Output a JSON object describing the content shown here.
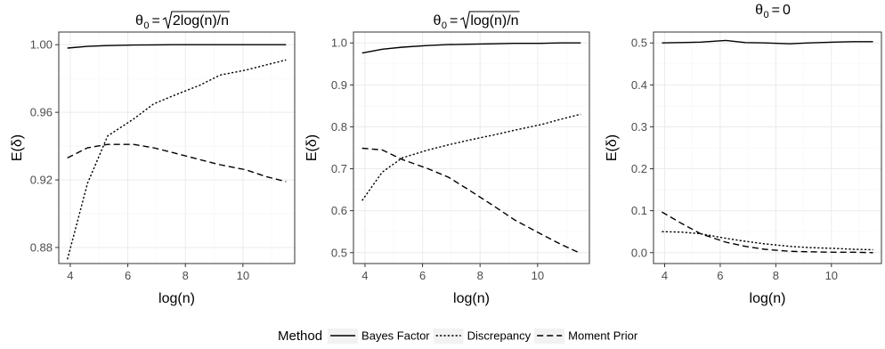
{
  "chart_data": [
    {
      "type": "line",
      "title": "θ0 = √(2log(n)/n)",
      "title_parts": {
        "symbol": "θ",
        "subscript": "0",
        "equals": "=",
        "radicand": "2log(n)/n"
      },
      "xlabel": "log(n)",
      "ylabel": "E(δ)",
      "xlim": [
        3.6,
        11.8
      ],
      "ylim": [
        0.8705,
        1.0075
      ],
      "x_ticks": [
        4,
        6,
        8,
        10
      ],
      "x_tick_labels": [
        "4",
        "6",
        "8",
        "10"
      ],
      "y_ticks": [
        0.88,
        0.92,
        0.96,
        1.0
      ],
      "y_tick_labels": [
        "0.88",
        "0.92",
        "0.96",
        "1.00"
      ],
      "grid": true,
      "series": [
        {
          "name": "Bayes Factor",
          "x": [
            3.9,
            4.6,
            5.3,
            6.2,
            6.9,
            7.6,
            8.5,
            9.2,
            10.1,
            10.8,
            11.5
          ],
          "values": [
            0.998,
            0.999,
            0.9995,
            0.9998,
            0.9999,
            1.0,
            1.0,
            1.0,
            1.0,
            1.0,
            1.0
          ]
        },
        {
          "name": "Discrepancy",
          "x": [
            3.9,
            4.6,
            5.3,
            6.2,
            6.9,
            7.6,
            8.5,
            9.2,
            10.1,
            10.8,
            11.5
          ],
          "values": [
            0.873,
            0.918,
            0.946,
            0.956,
            0.965,
            0.97,
            0.976,
            0.982,
            0.985,
            0.988,
            0.991
          ]
        },
        {
          "name": "Moment Prior",
          "x": [
            3.9,
            4.6,
            5.3,
            6.2,
            6.9,
            7.6,
            8.5,
            9.2,
            10.1,
            10.8,
            11.5
          ],
          "values": [
            0.933,
            0.939,
            0.941,
            0.941,
            0.939,
            0.936,
            0.932,
            0.929,
            0.926,
            0.922,
            0.919
          ]
        }
      ]
    },
    {
      "type": "line",
      "title": "θ0 = √(log(n)/n)",
      "title_parts": {
        "symbol": "θ",
        "subscript": "0",
        "equals": "=",
        "radicand": "log(n)/n"
      },
      "xlabel": "log(n)",
      "ylabel": "E(δ)",
      "xlim": [
        3.6,
        11.8
      ],
      "ylim": [
        0.474,
        1.026
      ],
      "x_ticks": [
        4,
        6,
        8,
        10
      ],
      "x_tick_labels": [
        "4",
        "6",
        "8",
        "10"
      ],
      "y_ticks": [
        0.5,
        0.6,
        0.7,
        0.8,
        0.9,
        1.0
      ],
      "y_tick_labels": [
        "0.5",
        "0.6",
        "0.7",
        "0.8",
        "0.9",
        "1.0"
      ],
      "grid": true,
      "series": [
        {
          "name": "Bayes Factor",
          "x": [
            3.9,
            4.6,
            5.3,
            6.2,
            6.9,
            7.6,
            8.5,
            9.2,
            10.1,
            10.8,
            11.5
          ],
          "values": [
            0.976,
            0.985,
            0.99,
            0.994,
            0.996,
            0.997,
            0.998,
            0.999,
            0.999,
            1.0,
            1.0
          ]
        },
        {
          "name": "Discrepancy",
          "x": [
            3.9,
            4.6,
            5.3,
            6.2,
            6.9,
            7.6,
            8.5,
            9.2,
            10.1,
            10.8,
            11.5
          ],
          "values": [
            0.624,
            0.692,
            0.726,
            0.745,
            0.757,
            0.768,
            0.781,
            0.792,
            0.805,
            0.818,
            0.83
          ]
        },
        {
          "name": "Moment Prior",
          "x": [
            3.9,
            4.6,
            5.3,
            6.2,
            6.9,
            7.6,
            8.5,
            9.2,
            10.1,
            10.8,
            11.5
          ],
          "values": [
            0.749,
            0.745,
            0.722,
            0.7,
            0.68,
            0.65,
            0.61,
            0.578,
            0.545,
            0.52,
            0.498
          ]
        }
      ]
    },
    {
      "type": "line",
      "title": "θ0 = 0",
      "title_parts": {
        "symbol": "θ",
        "subscript": "0",
        "equals": "=",
        "value": "0"
      },
      "xlabel": "log(n)",
      "ylabel": "E(δ)",
      "xlim": [
        3.6,
        11.8
      ],
      "ylim": [
        -0.026,
        0.526
      ],
      "x_ticks": [
        4,
        6,
        8,
        10
      ],
      "x_tick_labels": [
        "4",
        "6",
        "8",
        "10"
      ],
      "y_ticks": [
        0.0,
        0.1,
        0.2,
        0.3,
        0.4,
        0.5
      ],
      "y_tick_labels": [
        "0.0",
        "0.1",
        "0.2",
        "0.3",
        "0.4",
        "0.5"
      ],
      "grid": true,
      "series": [
        {
          "name": "Bayes Factor",
          "x": [
            3.9,
            4.6,
            5.3,
            6.2,
            6.9,
            7.6,
            8.5,
            9.2,
            10.1,
            10.8,
            11.5
          ],
          "values": [
            0.5,
            0.501,
            0.502,
            0.506,
            0.501,
            0.5,
            0.498,
            0.5,
            0.502,
            0.503,
            0.503
          ]
        },
        {
          "name": "Discrepancy",
          "x": [
            3.9,
            4.6,
            5.3,
            6.2,
            6.9,
            7.6,
            8.5,
            9.2,
            10.1,
            10.8,
            11.5
          ],
          "values": [
            0.05,
            0.049,
            0.045,
            0.034,
            0.027,
            0.021,
            0.015,
            0.012,
            0.01,
            0.008,
            0.007
          ]
        },
        {
          "name": "Moment Prior",
          "x": [
            3.9,
            4.6,
            5.3,
            6.2,
            6.9,
            7.6,
            8.5,
            9.2,
            10.1,
            10.8,
            11.5
          ],
          "values": [
            0.097,
            0.07,
            0.045,
            0.025,
            0.015,
            0.008,
            0.003,
            0.002,
            0.001,
            0.001,
            0.0
          ]
        }
      ]
    }
  ],
  "legend": {
    "title": "Method",
    "placement": "bottom",
    "entries": [
      {
        "name": "Bayes Factor",
        "dash": "solid"
      },
      {
        "name": "Discrepancy",
        "dash": "dotted"
      },
      {
        "name": "Moment Prior",
        "dash": "dashed"
      }
    ]
  },
  "colors": {
    "line": "#000000",
    "grid_major": "#ebebeb",
    "grid_minor": "#f5f5f5",
    "panel_border": "#333333",
    "tick_text": "#4d4d4d"
  }
}
